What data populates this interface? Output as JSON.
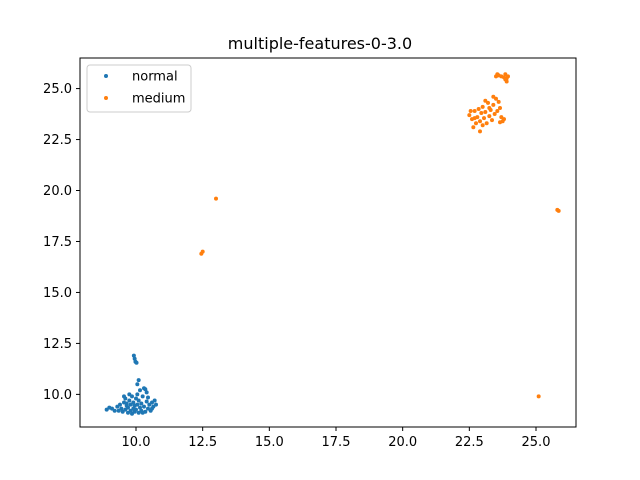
{
  "chart_data": {
    "type": "scatter",
    "title": "multiple-features-0-3.0",
    "xlabel": "",
    "ylabel": "",
    "xlim": [
      7.9,
      26.5
    ],
    "ylim": [
      8.4,
      26.5
    ],
    "xticks": [
      "10.0",
      "12.5",
      "15.0",
      "17.5",
      "20.0",
      "22.5",
      "25.0"
    ],
    "xtick_values": [
      10.0,
      12.5,
      15.0,
      17.5,
      20.0,
      22.5,
      25.0
    ],
    "yticks": [
      "10.0",
      "12.5",
      "15.0",
      "17.5",
      "20.0",
      "22.5",
      "25.0"
    ],
    "ytick_values": [
      10.0,
      12.5,
      15.0,
      17.5,
      20.0,
      22.5,
      25.0
    ],
    "grid": false,
    "legend_position": "top-left",
    "series": [
      {
        "name": "normal",
        "color": "#1f77b4",
        "points": [
          [
            8.9,
            9.25
          ],
          [
            9.0,
            9.35
          ],
          [
            9.1,
            9.3
          ],
          [
            9.2,
            9.2
          ],
          [
            9.3,
            9.4
          ],
          [
            9.35,
            9.2
          ],
          [
            9.4,
            9.5
          ],
          [
            9.45,
            9.3
          ],
          [
            9.5,
            9.15
          ],
          [
            9.55,
            9.6
          ],
          [
            9.6,
            9.25
          ],
          [
            9.65,
            9.45
          ],
          [
            9.7,
            9.1
          ],
          [
            9.7,
            9.35
          ],
          [
            9.75,
            9.7
          ],
          [
            9.8,
            9.2
          ],
          [
            9.8,
            9.5
          ],
          [
            9.85,
            9.9
          ],
          [
            9.9,
            9.3
          ],
          [
            9.9,
            9.6
          ],
          [
            9.95,
            9.15
          ],
          [
            9.95,
            9.45
          ],
          [
            10.0,
            9.8
          ],
          [
            10.0,
            9.25
          ],
          [
            10.05,
            10.0
          ],
          [
            10.05,
            9.5
          ],
          [
            10.1,
            9.1
          ],
          [
            10.1,
            9.7
          ],
          [
            10.15,
            9.35
          ],
          [
            10.15,
            10.2
          ],
          [
            10.2,
            9.55
          ],
          [
            10.2,
            9.2
          ],
          [
            10.25,
            9.9
          ],
          [
            10.3,
            10.3
          ],
          [
            10.3,
            9.4
          ],
          [
            10.35,
            9.15
          ],
          [
            10.4,
            9.65
          ],
          [
            10.4,
            10.1
          ],
          [
            10.45,
            9.3
          ],
          [
            10.5,
            9.5
          ],
          [
            10.55,
            9.2
          ],
          [
            10.6,
            9.6
          ],
          [
            10.65,
            9.4
          ],
          [
            10.7,
            9.7
          ],
          [
            10.75,
            9.5
          ],
          [
            9.6,
            9.8
          ],
          [
            9.75,
            10.0
          ],
          [
            10.05,
            10.5
          ],
          [
            10.1,
            10.7
          ],
          [
            9.92,
            11.9
          ],
          [
            9.95,
            11.75
          ],
          [
            9.98,
            11.6
          ],
          [
            10.02,
            11.55
          ],
          [
            9.55,
            9.9
          ],
          [
            9.65,
            9.55
          ],
          [
            10.25,
            9.1
          ],
          [
            9.85,
            9.05
          ],
          [
            10.45,
            9.85
          ],
          [
            10.35,
            10.25
          ],
          [
            10.6,
            9.3
          ]
        ]
      },
      {
        "name": "medium",
        "color": "#ff7f0e",
        "points": [
          [
            22.5,
            23.7
          ],
          [
            22.6,
            23.5
          ],
          [
            22.7,
            23.9
          ],
          [
            22.75,
            23.3
          ],
          [
            22.8,
            23.6
          ],
          [
            22.85,
            24.0
          ],
          [
            22.9,
            23.4
          ],
          [
            22.95,
            23.8
          ],
          [
            23.0,
            23.2
          ],
          [
            23.0,
            24.1
          ],
          [
            23.05,
            23.55
          ],
          [
            23.1,
            23.85
          ],
          [
            23.15,
            23.3
          ],
          [
            23.2,
            24.3
          ],
          [
            23.25,
            23.65
          ],
          [
            23.3,
            23.95
          ],
          [
            23.35,
            23.45
          ],
          [
            23.4,
            24.2
          ],
          [
            23.45,
            23.75
          ],
          [
            23.5,
            24.5
          ],
          [
            23.55,
            23.9
          ],
          [
            23.6,
            24.35
          ],
          [
            23.65,
            24.05
          ],
          [
            23.7,
            23.6
          ],
          [
            23.75,
            23.4
          ],
          [
            23.8,
            23.5
          ],
          [
            22.65,
            23.1
          ],
          [
            22.9,
            22.9
          ],
          [
            23.1,
            24.4
          ],
          [
            23.4,
            24.6
          ],
          [
            23.5,
            25.6
          ],
          [
            23.6,
            25.65
          ],
          [
            23.7,
            25.6
          ],
          [
            23.8,
            25.55
          ],
          [
            23.85,
            25.7
          ],
          [
            23.9,
            25.5
          ],
          [
            23.95,
            25.6
          ],
          [
            23.55,
            25.7
          ],
          [
            23.9,
            25.35
          ],
          [
            12.45,
            16.9
          ],
          [
            12.5,
            17.0
          ],
          [
            13.0,
            19.6
          ],
          [
            25.8,
            19.05
          ],
          [
            25.85,
            19.0
          ],
          [
            25.1,
            9.9
          ],
          [
            22.55,
            23.9
          ],
          [
            22.7,
            23.55
          ],
          [
            23.25,
            24.05
          ],
          [
            23.65,
            23.35
          ],
          [
            23.85,
            25.45
          ]
        ]
      }
    ]
  }
}
